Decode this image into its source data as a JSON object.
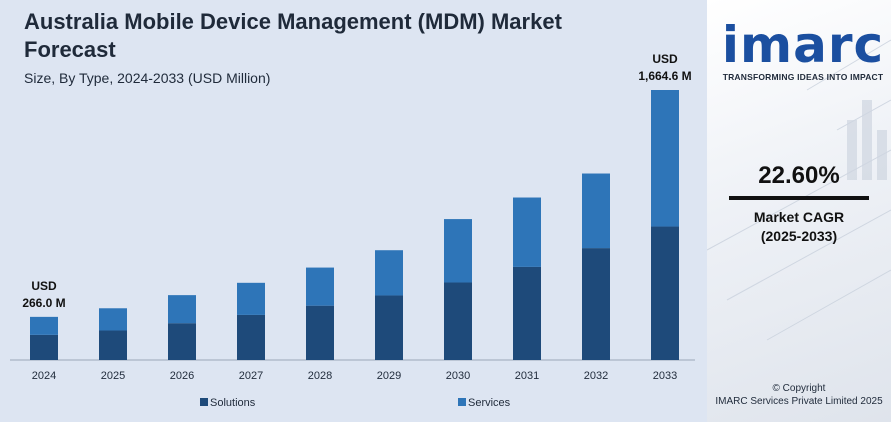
{
  "header": {
    "title": "Australia Mobile Device Management (MDM) Market Forecast",
    "subtitle": "Size, By Type, 2024-2033 (USD Million)"
  },
  "chart_data": {
    "type": "bar",
    "stacked": true,
    "categories": [
      "2024",
      "2025",
      "2026",
      "2027",
      "2028",
      "2029",
      "2030",
      "2031",
      "2032",
      "2033"
    ],
    "series": [
      {
        "name": "Solutions",
        "values": [
          155,
          182,
          227,
          278,
          335,
          398,
          478,
          574,
          690,
          823
        ],
        "color": "#1e4a7a"
      },
      {
        "name": "Services",
        "values": [
          111,
          137,
          173,
          198,
          235,
          279,
          391,
          428,
          460,
          842
        ],
        "color": "#2e75b8"
      }
    ],
    "ylim": [
      0,
      1850
    ],
    "grid": false,
    "legend": "bottom",
    "annotations": [
      {
        "category": "2024",
        "lines": [
          "USD",
          "266.0 M"
        ]
      },
      {
        "category": "2033",
        "lines": [
          "USD",
          "1,664.6 M"
        ]
      }
    ]
  },
  "side": {
    "logo_text": "imarc",
    "logo_tagline": "TRANSFORMING IDEAS INTO IMPACT",
    "cagr_value": "22.60%",
    "cagr_label": "Market CAGR",
    "cagr_period": "(2025-2033)",
    "copyright_line1": "© Copyright",
    "copyright_line2": "IMARC Services Private Limited 2025"
  }
}
